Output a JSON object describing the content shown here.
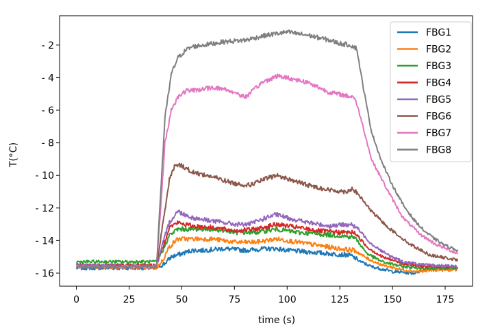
{
  "chart_data": {
    "type": "line",
    "title": "",
    "xlabel": "time (s)",
    "ylabel": "T(°C)",
    "xlim": [
      -8,
      188
    ],
    "ylim": [
      -16.8,
      -0.2
    ],
    "xticks": [
      0,
      25,
      50,
      75,
      100,
      125,
      150,
      175
    ],
    "yticks": [
      -16,
      -14,
      -12,
      -10,
      -8,
      -6,
      -4,
      -2
    ],
    "ytick_labels": [
      "- 16",
      "- 14",
      "- 12",
      "- 10",
      "- 8",
      "- 6",
      "- 4",
      "- 2"
    ],
    "grid": false,
    "legend": "top-right",
    "series": [
      {
        "name": "FBG1",
        "color": "#1f77b4",
        "points": [
          [
            0,
            -15.7
          ],
          [
            38,
            -15.7
          ],
          [
            42,
            -15.4
          ],
          [
            45,
            -15.0
          ],
          [
            50,
            -14.8
          ],
          [
            55,
            -14.6
          ],
          [
            60,
            -14.6
          ],
          [
            70,
            -14.5
          ],
          [
            80,
            -14.6
          ],
          [
            90,
            -14.5
          ],
          [
            95,
            -14.5
          ],
          [
            100,
            -14.6
          ],
          [
            110,
            -14.7
          ],
          [
            120,
            -14.8
          ],
          [
            130,
            -14.9
          ],
          [
            135,
            -15.3
          ],
          [
            140,
            -15.6
          ],
          [
            150,
            -15.9
          ],
          [
            160,
            -16.0
          ],
          [
            165,
            -15.8
          ],
          [
            170,
            -15.7
          ],
          [
            181,
            -15.7
          ]
        ]
      },
      {
        "name": "FBG2",
        "color": "#ff7f0e",
        "points": [
          [
            0,
            -15.6
          ],
          [
            38,
            -15.7
          ],
          [
            41,
            -15.2
          ],
          [
            44,
            -14.4
          ],
          [
            48,
            -13.9
          ],
          [
            55,
            -13.9
          ],
          [
            65,
            -13.9
          ],
          [
            75,
            -14.1
          ],
          [
            85,
            -14.1
          ],
          [
            95,
            -13.9
          ],
          [
            105,
            -14.1
          ],
          [
            115,
            -14.3
          ],
          [
            125,
            -14.5
          ],
          [
            132,
            -14.6
          ],
          [
            138,
            -15.1
          ],
          [
            145,
            -15.5
          ],
          [
            155,
            -15.8
          ],
          [
            162,
            -15.9
          ],
          [
            170,
            -15.8
          ],
          [
            181,
            -15.8
          ]
        ]
      },
      {
        "name": "FBG3",
        "color": "#2ca02c",
        "points": [
          [
            0,
            -15.3
          ],
          [
            38,
            -15.3
          ],
          [
            41,
            -14.6
          ],
          [
            44,
            -13.7
          ],
          [
            48,
            -13.3
          ],
          [
            55,
            -13.3
          ],
          [
            65,
            -13.3
          ],
          [
            75,
            -13.5
          ],
          [
            85,
            -13.5
          ],
          [
            95,
            -13.3
          ],
          [
            105,
            -13.5
          ],
          [
            115,
            -13.6
          ],
          [
            125,
            -13.7
          ],
          [
            132,
            -13.8
          ],
          [
            138,
            -14.8
          ],
          [
            145,
            -15.3
          ],
          [
            155,
            -15.6
          ],
          [
            165,
            -15.7
          ],
          [
            181,
            -15.7
          ]
        ]
      },
      {
        "name": "FBG4",
        "color": "#d62728",
        "points": [
          [
            0,
            -15.5
          ],
          [
            38,
            -15.5
          ],
          [
            41,
            -14.4
          ],
          [
            44,
            -13.2
          ],
          [
            48,
            -12.9
          ],
          [
            55,
            -13.1
          ],
          [
            65,
            -13.2
          ],
          [
            75,
            -13.4
          ],
          [
            85,
            -13.3
          ],
          [
            95,
            -13.0
          ],
          [
            105,
            -13.2
          ],
          [
            115,
            -13.4
          ],
          [
            125,
            -13.5
          ],
          [
            132,
            -13.5
          ],
          [
            138,
            -14.4
          ],
          [
            145,
            -15.0
          ],
          [
            155,
            -15.4
          ],
          [
            165,
            -15.6
          ],
          [
            181,
            -15.6
          ]
        ]
      },
      {
        "name": "FBG5",
        "color": "#9467bd",
        "points": [
          [
            0,
            -15.5
          ],
          [
            38,
            -15.6
          ],
          [
            41,
            -14.2
          ],
          [
            44,
            -12.9
          ],
          [
            48,
            -12.2
          ],
          [
            55,
            -12.6
          ],
          [
            65,
            -12.8
          ],
          [
            75,
            -13.0
          ],
          [
            82,
            -13.0
          ],
          [
            90,
            -12.6
          ],
          [
            95,
            -12.4
          ],
          [
            100,
            -12.6
          ],
          [
            110,
            -12.9
          ],
          [
            120,
            -13.1
          ],
          [
            130,
            -13.0
          ],
          [
            133,
            -13.2
          ],
          [
            140,
            -14.2
          ],
          [
            148,
            -14.9
          ],
          [
            155,
            -15.3
          ],
          [
            165,
            -15.5
          ],
          [
            181,
            -15.6
          ]
        ]
      },
      {
        "name": "FBG6",
        "color": "#8c564b",
        "points": [
          [
            0,
            -15.6
          ],
          [
            38,
            -15.6
          ],
          [
            41,
            -13.0
          ],
          [
            44,
            -10.3
          ],
          [
            47,
            -9.3
          ],
          [
            50,
            -9.4
          ],
          [
            55,
            -9.8
          ],
          [
            65,
            -10.1
          ],
          [
            75,
            -10.5
          ],
          [
            82,
            -10.6
          ],
          [
            90,
            -10.2
          ],
          [
            95,
            -10.0
          ],
          [
            100,
            -10.2
          ],
          [
            110,
            -10.6
          ],
          [
            120,
            -10.9
          ],
          [
            128,
            -11.0
          ],
          [
            131,
            -10.8
          ],
          [
            134,
            -11.2
          ],
          [
            140,
            -12.2
          ],
          [
            148,
            -13.2
          ],
          [
            158,
            -14.2
          ],
          [
            168,
            -14.9
          ],
          [
            181,
            -15.2
          ]
        ]
      },
      {
        "name": "FBG7",
        "color": "#e377c2",
        "points": [
          [
            0,
            -15.6
          ],
          [
            38,
            -15.6
          ],
          [
            40,
            -12.0
          ],
          [
            42,
            -8.0
          ],
          [
            45,
            -6.0
          ],
          [
            48,
            -5.2
          ],
          [
            52,
            -4.8
          ],
          [
            55,
            -4.8
          ],
          [
            60,
            -4.7
          ],
          [
            65,
            -4.6
          ],
          [
            70,
            -4.7
          ],
          [
            75,
            -4.9
          ],
          [
            80,
            -5.2
          ],
          [
            83,
            -4.9
          ],
          [
            88,
            -4.3
          ],
          [
            95,
            -3.9
          ],
          [
            100,
            -4.0
          ],
          [
            110,
            -4.3
          ],
          [
            120,
            -4.9
          ],
          [
            128,
            -5.1
          ],
          [
            132,
            -5.2
          ],
          [
            135,
            -6.5
          ],
          [
            140,
            -9.0
          ],
          [
            148,
            -11.0
          ],
          [
            155,
            -12.6
          ],
          [
            163,
            -13.6
          ],
          [
            170,
            -14.2
          ],
          [
            181,
            -14.8
          ]
        ]
      },
      {
        "name": "FBG8",
        "color": "#7f7f7f",
        "points": [
          [
            0,
            -15.6
          ],
          [
            38,
            -15.6
          ],
          [
            40,
            -11.0
          ],
          [
            42,
            -6.5
          ],
          [
            45,
            -3.8
          ],
          [
            48,
            -2.8
          ],
          [
            52,
            -2.3
          ],
          [
            55,
            -2.1
          ],
          [
            60,
            -2.0
          ],
          [
            70,
            -1.8
          ],
          [
            80,
            -1.7
          ],
          [
            90,
            -1.4
          ],
          [
            95,
            -1.3
          ],
          [
            100,
            -1.2
          ],
          [
            110,
            -1.4
          ],
          [
            120,
            -1.7
          ],
          [
            125,
            -1.9
          ],
          [
            130,
            -2.0
          ],
          [
            133,
            -2.2
          ],
          [
            136,
            -4.5
          ],
          [
            140,
            -7.3
          ],
          [
            145,
            -9.2
          ],
          [
            150,
            -10.6
          ],
          [
            155,
            -11.8
          ],
          [
            160,
            -12.7
          ],
          [
            165,
            -13.4
          ],
          [
            170,
            -13.9
          ],
          [
            175,
            -14.3
          ],
          [
            181,
            -14.6
          ]
        ]
      }
    ]
  }
}
